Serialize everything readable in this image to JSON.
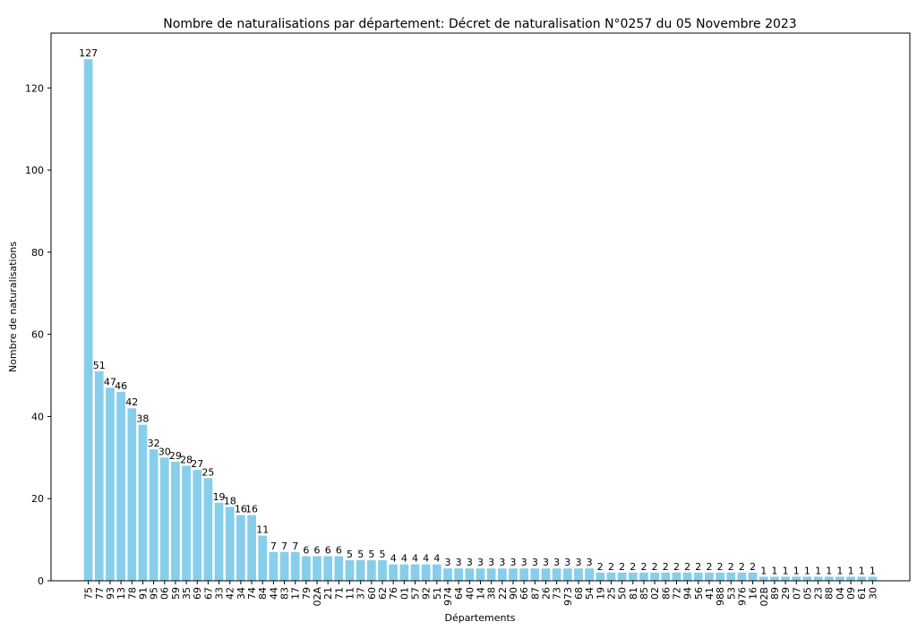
{
  "chart_data": {
    "type": "bar",
    "title": "Nombre de naturalisations par département: Décret de naturalisation N°0257 du 05 Novembre 2023",
    "xlabel": "Départements",
    "ylabel": "Nombre de naturalisations",
    "ylim": [
      0,
      133.35
    ],
    "yticks": [
      0,
      20,
      40,
      60,
      80,
      100,
      120
    ],
    "grid": false,
    "bar_color": "#87ceeb",
    "categories": [
      "75",
      "77",
      "93",
      "13",
      "78",
      "91",
      "95",
      "06",
      "59",
      "35",
      "69",
      "67",
      "33",
      "42",
      "34",
      "74",
      "84",
      "44",
      "83",
      "17",
      "79",
      "02A",
      "21",
      "71",
      "11",
      "37",
      "60",
      "62",
      "76",
      "01",
      "57",
      "92",
      "51",
      "974",
      "64",
      "40",
      "14",
      "38",
      "22",
      "90",
      "66",
      "87",
      "26",
      "73",
      "973",
      "68",
      "54",
      "19",
      "25",
      "50",
      "81",
      "85",
      "02",
      "86",
      "72",
      "94",
      "56",
      "41",
      "988",
      "53",
      "976",
      "16",
      "02B",
      "89",
      "29",
      "07",
      "05",
      "23",
      "88",
      "04",
      "09",
      "61",
      "30"
    ],
    "values": [
      127,
      51,
      47,
      46,
      42,
      38,
      32,
      30,
      29,
      28,
      27,
      25,
      19,
      18,
      16,
      16,
      11,
      7,
      7,
      7,
      6,
      6,
      6,
      6,
      5,
      5,
      5,
      5,
      4,
      4,
      4,
      4,
      4,
      3,
      3,
      3,
      3,
      3,
      3,
      3,
      3,
      3,
      3,
      3,
      3,
      3,
      3,
      2,
      2,
      2,
      2,
      2,
      2,
      2,
      2,
      2,
      2,
      2,
      2,
      2,
      2,
      2,
      1,
      1,
      1,
      1,
      1,
      1,
      1,
      1,
      1,
      1,
      1
    ]
  }
}
